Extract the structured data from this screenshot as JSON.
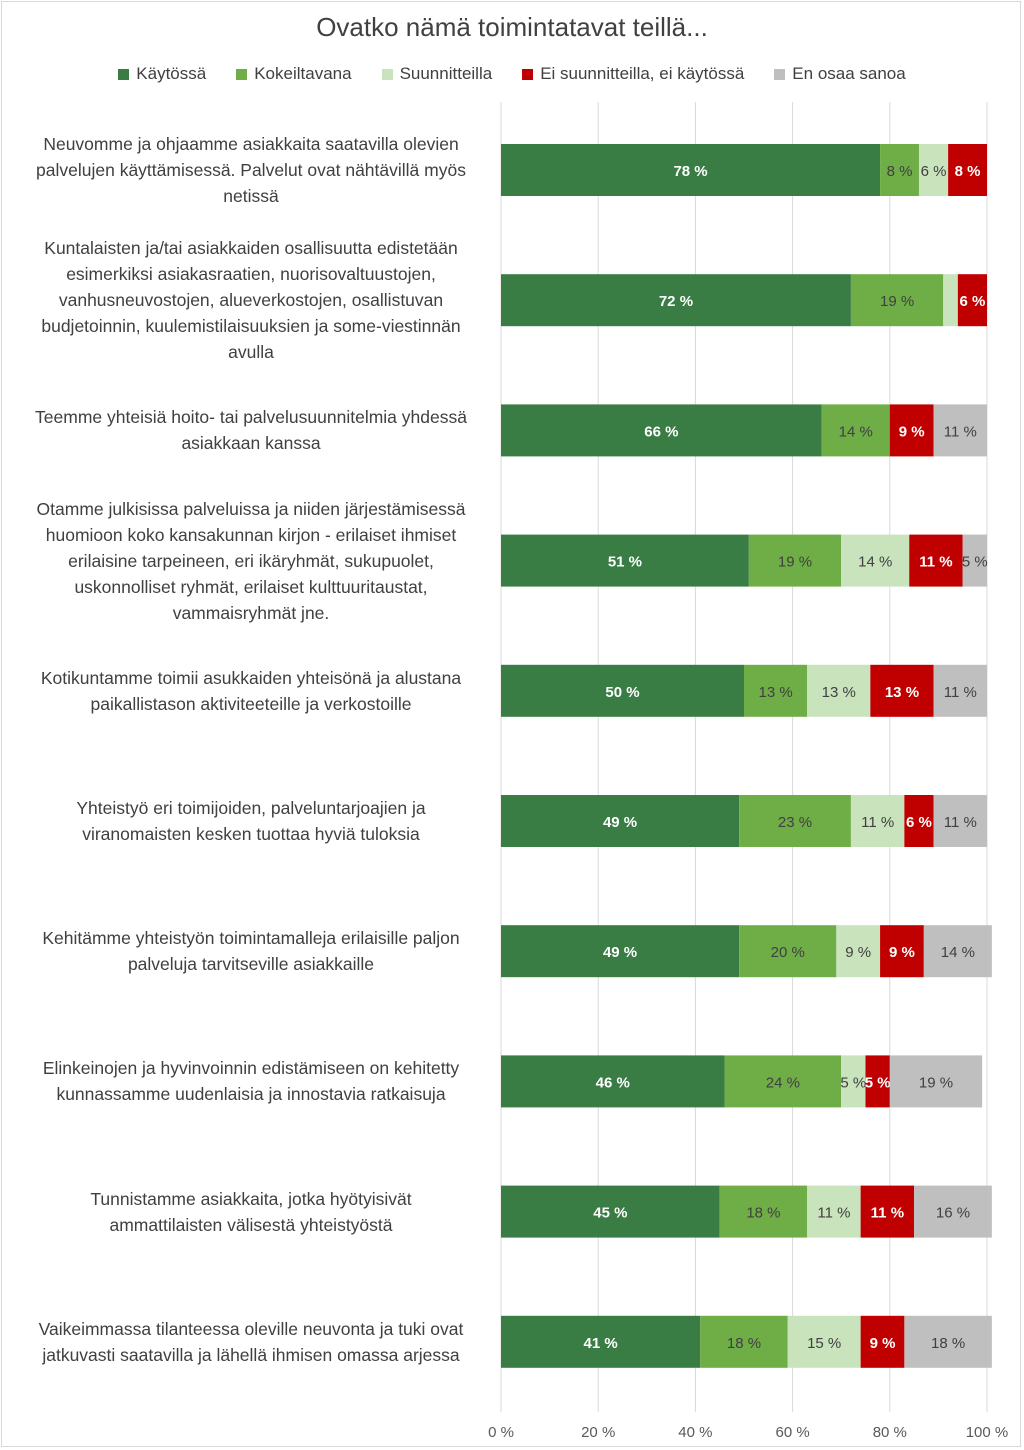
{
  "chart_data": {
    "type": "bar",
    "orientation": "horizontal",
    "stacked": true,
    "title": "Ovatko nämä toimintatavat teillä...",
    "categories": [
      "Neuvomme ja ohjaamme asiakkaita saatavilla olevien palvelujen käyttämisessä. Palvelut ovat nähtävillä myös netissä",
      "Kuntalaisten ja/tai asiakkaiden osallisuutta edistetään esimerkiksi asiakasraatien, nuorisovaltuustojen, vanhusneuvostojen, alueverkostojen, osallistuvan budjetoinnin, kuulemistilaisuuksien ja some-viestinnän avulla",
      "Teemme yhteisiä hoito- tai palvelusuunnitelmia yhdessä asiakkaan kanssa",
      "Otamme julkisissa palveluissa ja niiden järjestämisessä huomioon koko kansakunnan kirjon - erilaiset ihmiset erilaisine tarpeineen, eri ikäryhmät, sukupuolet, uskonnolliset ryhmät, erilaiset kulttuuritaustat, vammaisryhmät jne.",
      "Kotikuntamme toimii asukkaiden yhteisönä ja alustana paikallistason aktiviteeteille ja verkostoille",
      "Yhteistyö eri toimijoiden, palveluntarjoajien ja viranomaisten kesken tuottaa hyviä tuloksia",
      "Kehitämme yhteistyön toimintamalleja erilaisille paljon palveluja tarvitseville asiakkaille",
      "Elinkeinojen ja hyvinvoinnin edistämiseen on kehitetty kunnassamme uudenlaisia ja innostavia ratkaisuja",
      "Tunnistamme asiakkaita, jotka hyötyisivät ammattilaisten välisestä yhteistyöstä",
      "Vaikeimmassa tilanteessa oleville neuvonta ja tuki ovat jatkuvasti saatavilla ja lähellä ihmisen omassa arjessa"
    ],
    "category_lines": [
      [
        "Neuvomme ja ohjaamme asiakkaita saatavilla olevien",
        "palvelujen käyttämisessä. Palvelut ovat nähtävillä myös",
        "netissä"
      ],
      [
        "Kuntalaisten ja/tai asiakkaiden osallisuutta edistetään",
        "esimerkiksi asiakasraatien, nuorisovaltuustojen,",
        "vanhusneuvostojen, alueverkostojen, osallistuvan",
        "budjetoinnin, kuulemistilaisuuksien ja some-viestinnän",
        "avulla"
      ],
      [
        "Teemme yhteisiä hoito- tai palvelusuunnitelmia yhdessä",
        "asiakkaan kanssa"
      ],
      [
        "Otamme julkisissa palveluissa ja niiden järjestämisessä",
        "huomioon koko kansakunnan kirjon - erilaiset ihmiset",
        "erilaisine tarpeineen, eri ikäryhmät, sukupuolet,",
        "uskonnolliset ryhmät, erilaiset kulttuuritaustat,",
        "vammaisryhmät jne."
      ],
      [
        "Kotikuntamme toimii asukkaiden yhteisönä ja alustana",
        "paikallistason aktiviteeteille ja verkostoille"
      ],
      [
        "Yhteistyö eri toimijoiden, palveluntarjoajien ja",
        "viranomaisten kesken tuottaa hyviä tuloksia"
      ],
      [
        "Kehitämme yhteistyön toimintamalleja erilaisille paljon",
        "palveluja tarvitseville asiakkaille"
      ],
      [
        "Elinkeinojen ja hyvinvoinnin edistämiseen on kehitetty",
        "kunnassamme uudenlaisia ja innostavia ratkaisuja"
      ],
      [
        "Tunnistamme asiakkaita, jotka hyötyisivät",
        "ammattilaisten välisestä yhteistyöstä"
      ],
      [
        "Vaikeimmassa tilanteessa oleville neuvonta ja tuki ovat",
        "jatkuvasti saatavilla ja lähellä ihmisen omassa arjessa"
      ]
    ],
    "series": [
      {
        "name": "Käytössä",
        "color": "#3a7d44",
        "label_color": "#ffffff",
        "label_bold": true,
        "values": [
          78,
          72,
          66,
          51,
          50,
          49,
          49,
          46,
          45,
          41
        ],
        "labels": [
          "78 %",
          "72 %",
          "66 %",
          "51 %",
          "50 %",
          "49 %",
          "49 %",
          "46 %",
          "45 %",
          "41 %"
        ]
      },
      {
        "name": "Kokeiltavana",
        "color": "#6fad47",
        "label_color": "#404040",
        "label_bold": false,
        "values": [
          8,
          19,
          14,
          19,
          13,
          23,
          20,
          24,
          18,
          18
        ],
        "labels": [
          "8 %",
          "19 %",
          "14 %",
          "19 %",
          "13 %",
          "23 %",
          "20 %",
          "24 %",
          "18 %",
          "18 %"
        ]
      },
      {
        "name": "Suunnitteilla",
        "color": "#c9e3bd",
        "label_color": "#404040",
        "label_bold": false,
        "values": [
          6,
          3,
          0,
          14,
          13,
          11,
          9,
          5,
          11,
          15
        ],
        "labels": [
          "6 %",
          "",
          "",
          "14 %",
          "13 %",
          "11 %",
          "9 %",
          "5 %",
          "11 %",
          "15 %"
        ]
      },
      {
        "name": "Ei suunnitteilla, ei käytössä",
        "color": "#c00000",
        "label_color": "#ffffff",
        "label_bold": true,
        "values": [
          8,
          6,
          9,
          11,
          13,
          6,
          9,
          5,
          11,
          9
        ],
        "labels": [
          "8 %",
          "6 %",
          "9 %",
          "11 %",
          "13 %",
          "6 %",
          "9 %",
          "5 %",
          "11 %",
          "9 %"
        ]
      },
      {
        "name": "En osaa sanoa",
        "color": "#bfbfbf",
        "label_color": "#404040",
        "label_bold": false,
        "values": [
          0,
          0,
          11,
          5,
          11,
          11,
          14,
          19,
          16,
          18
        ],
        "labels": [
          "",
          "",
          "11 %",
          "5 %",
          "11 %",
          "11 %",
          "14 %",
          "19 %",
          "16 %",
          "18 %"
        ]
      }
    ],
    "xlim": [
      0,
      100
    ],
    "xticks": [
      "0 %",
      "20 %",
      "40 %",
      "60 %",
      "80 %",
      "100 %"
    ],
    "grid": true,
    "legend_position": "top"
  }
}
